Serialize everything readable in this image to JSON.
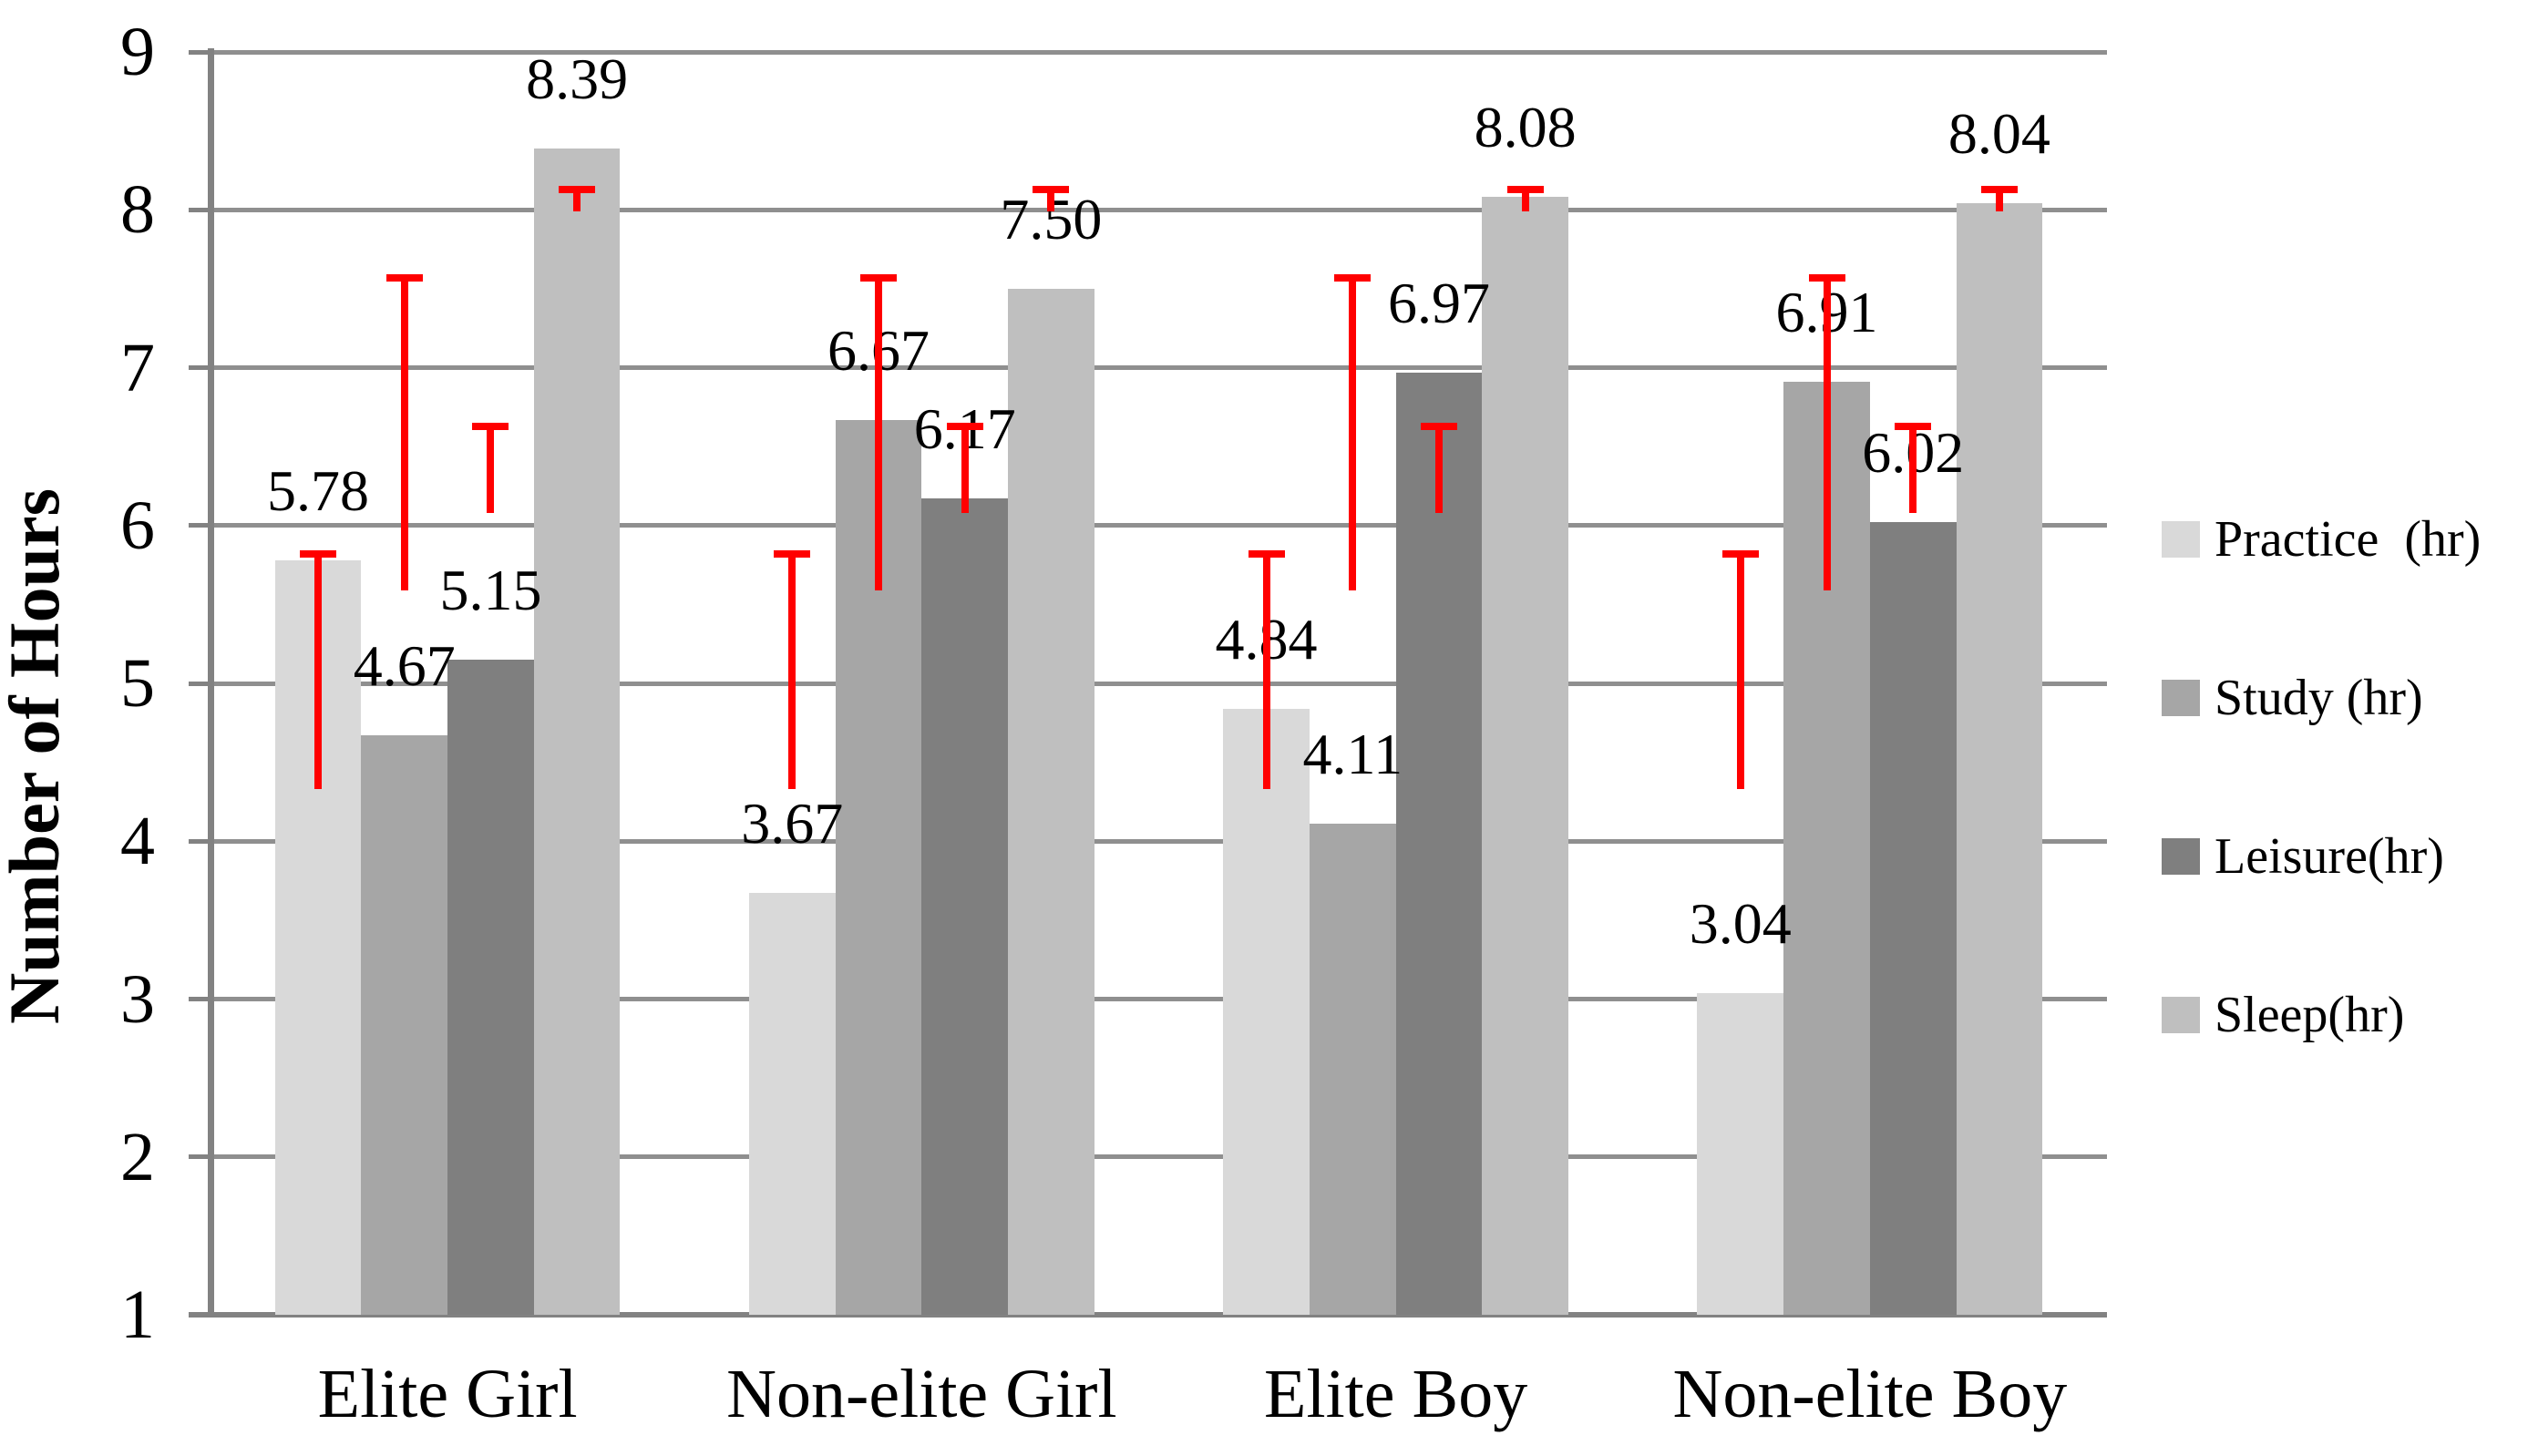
{
  "chart_data": {
    "type": "bar",
    "title": "",
    "ylabel": "Number of Hours",
    "xlabel": "",
    "categories": [
      "Elite Girl",
      "Non-elite Girl",
      "Elite Boy",
      "Non-elite Boy"
    ],
    "series": [
      {
        "name": "Practice  (hr)",
        "color": "#d9d9d9",
        "values": [
          5.78,
          3.67,
          4.84,
          3.04
        ],
        "value_labels": [
          "5.78",
          "3.67",
          "4.84",
          "3.04"
        ],
        "error_bar": {
          "low": 4.33,
          "high": 5.82
        }
      },
      {
        "name": "Study (hr)",
        "color": "#a6a6a6",
        "values": [
          4.67,
          6.67,
          4.11,
          6.91
        ],
        "value_labels": [
          "4.67",
          "6.67",
          "4.11",
          "6.91"
        ],
        "error_bar": {
          "low": 5.59,
          "high": 7.57
        }
      },
      {
        "name": "Leisure(hr)",
        "color": "#7f7f7f",
        "values": [
          5.15,
          6.17,
          6.97,
          6.02
        ],
        "value_labels": [
          "5.15",
          "6.17",
          "6.97",
          "6.02"
        ],
        "error_bar": {
          "low": 6.08,
          "high": 6.63
        }
      },
      {
        "name": "Sleep(hr)",
        "color": "#bfbfbf",
        "values": [
          8.39,
          7.5,
          8.08,
          8.04
        ],
        "value_labels": [
          "8.39",
          "7.50",
          "8.08",
          "8.04"
        ],
        "error_bar": {
          "low": 7.99,
          "high": 8.13
        }
      }
    ],
    "yticks": [
      "1",
      "2",
      "3",
      "4",
      "5",
      "6",
      "7",
      "8",
      "9"
    ],
    "ylim": [
      1,
      9
    ],
    "baseline": 1,
    "grid": true,
    "legend_position": "right",
    "error_bar_color": "#ff0000",
    "gridline_color": "#8f8f8f",
    "axis_color": "#828282"
  }
}
